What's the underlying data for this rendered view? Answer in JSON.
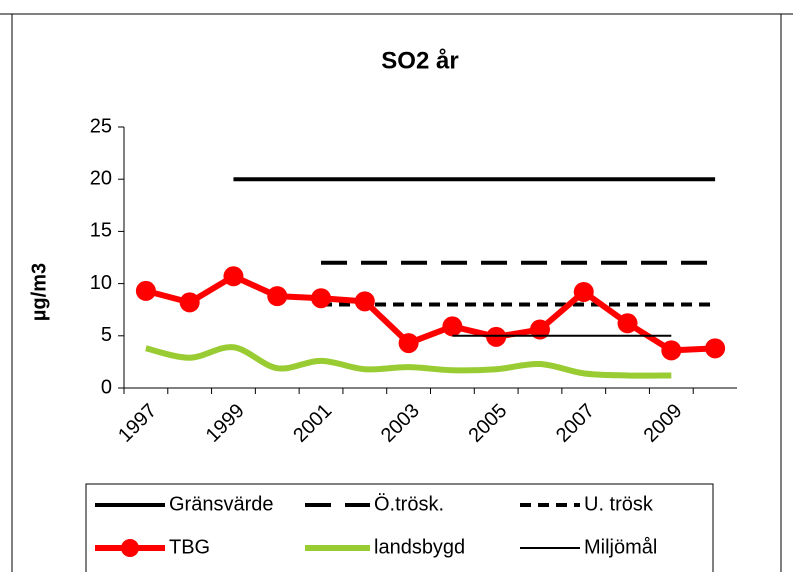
{
  "chart_data": {
    "type": "line",
    "title": "SO2 år",
    "y_label": "µg/m3",
    "categories": [
      "1997",
      null,
      "1999",
      null,
      "2001",
      null,
      "2003",
      null,
      "2005",
      null,
      "2007",
      null,
      "2009",
      null
    ],
    "ylim": [
      0,
      25
    ],
    "yticks": [
      0,
      5,
      10,
      15,
      20,
      25
    ],
    "grid": false,
    "legend": "bottom",
    "series": [
      {
        "name": "Gränsvärde",
        "color": "#000000",
        "line_style": "solid",
        "values": [
          null,
          null,
          20,
          20,
          20,
          20,
          20,
          20,
          20,
          20,
          20,
          20,
          20,
          20
        ]
      },
      {
        "name": "Ö.trösk.",
        "color": "#000000",
        "line_style": "long-dash",
        "values": [
          null,
          null,
          null,
          null,
          12,
          12,
          12,
          12,
          12,
          12,
          12,
          12,
          12,
          12
        ]
      },
      {
        "name": "U. trösk",
        "color": "#000000",
        "line_style": "short-dash",
        "values": [
          null,
          null,
          null,
          null,
          8,
          8,
          8,
          8,
          8,
          8,
          8,
          8,
          8,
          8
        ]
      },
      {
        "name": "TBG",
        "color": "#ff0000",
        "line_style": "marker",
        "values": [
          9.3,
          8.2,
          10.7,
          8.8,
          8.6,
          8.3,
          4.3,
          5.9,
          4.9,
          5.6,
          9.2,
          6.2,
          3.6,
          3.8
        ]
      },
      {
        "name": "landsbygd",
        "color": "#99cc33",
        "line_style": "smooth",
        "values": [
          3.8,
          2.9,
          3.9,
          1.9,
          2.6,
          1.8,
          2.0,
          1.7,
          1.8,
          2.3,
          1.4,
          1.2,
          1.2,
          null
        ]
      },
      {
        "name": "Miljömål",
        "color": "#000000",
        "line_style": "thin",
        "values": [
          null,
          null,
          null,
          null,
          null,
          null,
          null,
          5,
          5,
          5,
          5,
          5,
          5,
          null
        ]
      }
    ]
  }
}
